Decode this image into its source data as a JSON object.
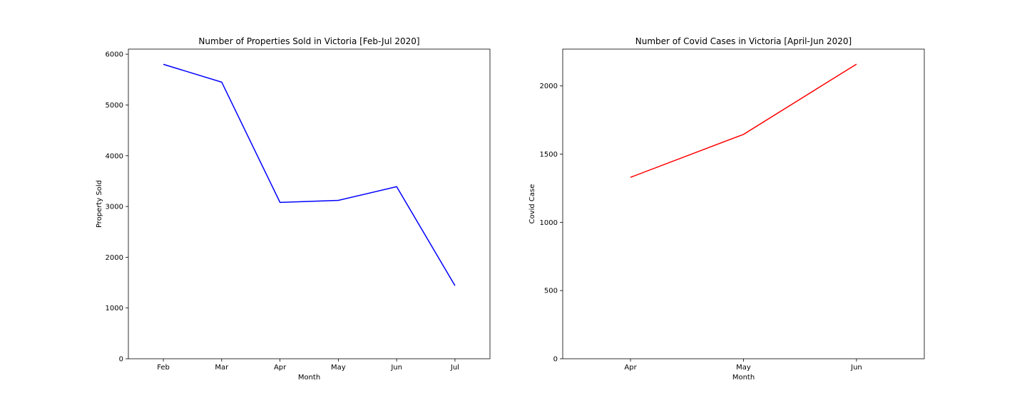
{
  "chart_data": [
    {
      "type": "bar",
      "title": "Number of Properties Sold in Victoria [Feb-Jul 2020]",
      "xlabel": "Month",
      "ylabel": "Property Sold",
      "categories": [
        "Feb",
        "Mar",
        "Apr",
        "May",
        "Jun",
        "Jul"
      ],
      "values": [
        5800,
        5450,
        3080,
        3120,
        3390,
        1440
      ],
      "overlay_line": true,
      "ylim": [
        0,
        6100
      ],
      "yticks": [
        0,
        1000,
        2000,
        3000,
        4000,
        5000,
        6000
      ],
      "bar_color": "#8080ff",
      "line_color": "#0000ff",
      "grid": false
    },
    {
      "type": "bar",
      "title": "Number of Covid Cases in Victoria [April-Jun 2020]",
      "xlabel": "Month",
      "ylabel": "Covid Case",
      "categories": [
        "Apr",
        "May",
        "Jun"
      ],
      "values": [
        1330,
        1645,
        2160
      ],
      "overlay_line": true,
      "ylim": [
        0,
        2270
      ],
      "yticks": [
        0,
        500,
        1000,
        1500,
        2000
      ],
      "bar_color": "#ff8080",
      "line_color": "#ff0000",
      "grid": false
    }
  ]
}
